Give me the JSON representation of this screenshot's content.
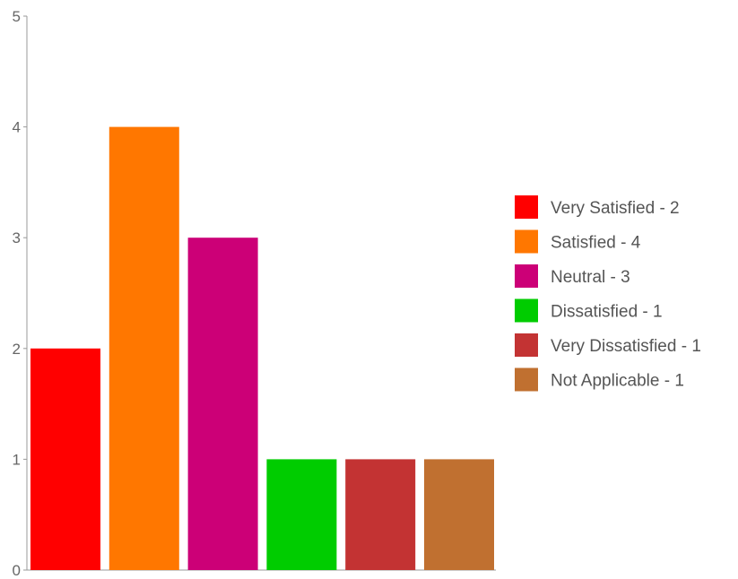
{
  "chart_data": {
    "type": "bar",
    "title": "",
    "xlabel": "",
    "ylabel": "",
    "categories": [
      "Very Satisfied",
      "Satisfied",
      "Neutral",
      "Dissatisfied",
      "Very Dissatisfied",
      "Not Applicable"
    ],
    "values": [
      2,
      4,
      3,
      1,
      1,
      1
    ],
    "colors": [
      "#ff0000",
      "#ff7700",
      "#cc0077",
      "#00cc00",
      "#c33333",
      "#c07030"
    ],
    "ylim": [
      0,
      5
    ],
    "yticks": [
      "0",
      "1",
      "2",
      "3",
      "4",
      "5"
    ],
    "grid": false,
    "legend_position": "right",
    "legend": [
      "Very Satisfied - 2",
      "Satisfied - 4",
      "Neutral - 3",
      "Dissatisfied - 1",
      "Very Dissatisfied - 1",
      "Not Applicable - 1"
    ]
  }
}
